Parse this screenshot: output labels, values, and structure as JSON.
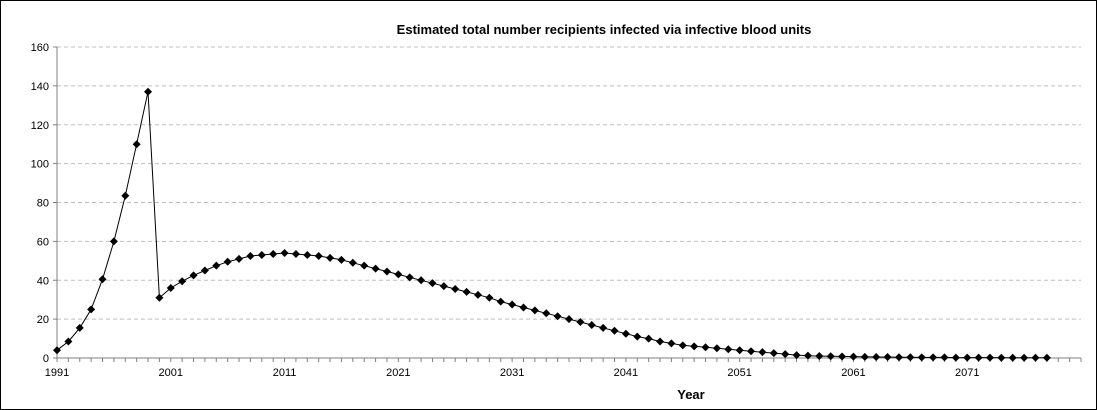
{
  "chart_data": {
    "type": "line",
    "title": "Estimated total number recipients infected via infective blood units",
    "xlabel": "Year",
    "ylabel": "",
    "x_ticks": [
      "1991",
      "2001",
      "2011",
      "2021",
      "2031",
      "2041",
      "2051",
      "2061",
      "2071"
    ],
    "y_ticks": [
      "0",
      "20",
      "40",
      "60",
      "80",
      "100",
      "120",
      "140",
      "160"
    ],
    "xlim": [
      1991,
      2081
    ],
    "ylim": [
      0,
      160
    ],
    "grid": "horizontal dashed",
    "legend": "none",
    "marker": "diamond",
    "series": [
      {
        "x": [
          1991,
          1992,
          1993,
          1994,
          1995,
          1996,
          1997,
          1998,
          1999,
          2000,
          2001,
          2002,
          2003,
          2004,
          2005,
          2006,
          2007,
          2008,
          2009,
          2010,
          2011,
          2012,
          2013,
          2014,
          2015,
          2016,
          2017,
          2018,
          2019,
          2020,
          2021,
          2022,
          2023,
          2024,
          2025,
          2026,
          2027,
          2028,
          2029,
          2030,
          2031,
          2032,
          2033,
          2034,
          2035,
          2036,
          2037,
          2038,
          2039,
          2040,
          2041,
          2042,
          2043,
          2044,
          2045,
          2046,
          2047,
          2048,
          2049,
          2050,
          2051,
          2052,
          2053,
          2054,
          2055,
          2056,
          2057,
          2058,
          2059,
          2060,
          2061,
          2062,
          2063,
          2064,
          2065,
          2066,
          2067,
          2068,
          2069,
          2070,
          2071,
          2072,
          2073,
          2074,
          2075,
          2076,
          2077,
          2078
        ],
        "values": [
          4,
          8.5,
          15.5,
          25,
          40.5,
          60,
          83.5,
          110,
          137,
          31,
          36,
          39.5,
          42.5,
          45,
          47.5,
          49.5,
          51,
          52.5,
          53,
          53.5,
          54,
          53.5,
          53,
          52.5,
          51.5,
          50.5,
          49,
          47.5,
          46,
          44.5,
          43,
          41.5,
          40,
          38.5,
          37,
          35.5,
          34,
          32.5,
          31,
          29,
          27.5,
          26,
          24.5,
          23,
          21.5,
          20,
          18.5,
          17,
          15.5,
          14,
          12.5,
          11,
          10,
          8.5,
          7.5,
          6.5,
          6,
          5.5,
          5,
          4.5,
          4,
          3.5,
          3,
          2.5,
          2,
          1.5,
          1.2,
          1,
          0.9,
          0.8,
          0.7,
          0.6,
          0.5,
          0.5,
          0.4,
          0.4,
          0.3,
          0.3,
          0.3,
          0.2,
          0.2,
          0.2,
          0.2,
          0.1,
          0.1,
          0.1,
          0.1,
          0.1
        ]
      }
    ],
    "colors": {
      "line": "#000000",
      "marker": "#000000",
      "grid": "#bfbfbf",
      "axis": "#808080"
    }
  }
}
